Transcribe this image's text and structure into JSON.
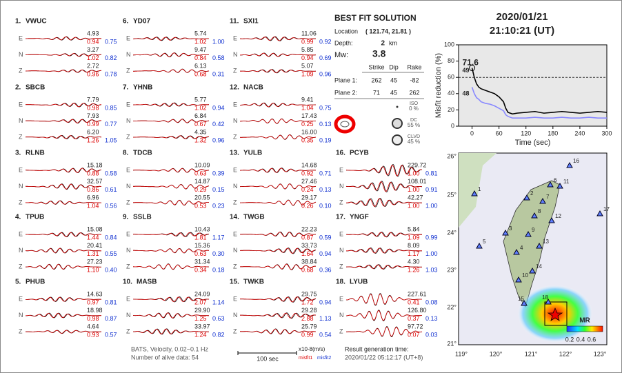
{
  "header": {
    "date": "2020/01/21",
    "time": "21:10:21  (UT)"
  },
  "stations": [
    {
      "id": "1.",
      "name": "VWUC",
      "components": [
        {
          "label": "E",
          "amplitude": "4.93",
          "misfit1": "0.94",
          "misfit2": "0.75"
        },
        {
          "label": "N",
          "amplitude": "3.27",
          "misfit1": "1.02",
          "misfit2": "0.82"
        },
        {
          "label": "Z",
          "amplitude": "2.72",
          "misfit1": "0.96",
          "misfit2": "0.78"
        }
      ]
    },
    {
      "id": "2.",
      "name": "SBCB",
      "components": [
        {
          "label": "E",
          "amplitude": "7.79",
          "misfit1": "0.98",
          "misfit2": "0.85"
        },
        {
          "label": "N",
          "amplitude": "7.93",
          "misfit1": "0.99",
          "misfit2": "0.77"
        },
        {
          "label": "Z",
          "amplitude": "6.20",
          "misfit1": "1.26",
          "misfit2": "1.05"
        }
      ]
    },
    {
      "id": "3.",
      "name": "RLNB",
      "components": [
        {
          "label": "E",
          "amplitude": "15.18",
          "misfit1": "0.88",
          "misfit2": "0.58"
        },
        {
          "label": "N",
          "amplitude": "32.57",
          "misfit1": "0.86",
          "misfit2": "0.61"
        },
        {
          "label": "Z",
          "amplitude": "6.96",
          "misfit1": "1.04",
          "misfit2": "0.56"
        }
      ]
    },
    {
      "id": "4.",
      "name": "TPUB",
      "components": [
        {
          "label": "E",
          "amplitude": "15.08",
          "misfit1": "1.44",
          "misfit2": "0.84"
        },
        {
          "label": "N",
          "amplitude": "20.41",
          "misfit1": "1.31",
          "misfit2": "0.55"
        },
        {
          "label": "Z",
          "amplitude": "27.23",
          "misfit1": "1.10",
          "misfit2": "0.40"
        }
      ]
    },
    {
      "id": "5.",
      "name": "PHUB",
      "components": [
        {
          "label": "E",
          "amplitude": "14.63",
          "misfit1": "0.97",
          "misfit2": "0.81"
        },
        {
          "label": "N",
          "amplitude": "18.98",
          "misfit1": "0.98",
          "misfit2": "0.87"
        },
        {
          "label": "Z",
          "amplitude": "4.64",
          "misfit1": "0.93",
          "misfit2": "0.57"
        }
      ]
    },
    {
      "id": "6.",
      "name": "YD07",
      "components": [
        {
          "label": "E",
          "amplitude": "5.74",
          "misfit1": "1.02",
          "misfit2": "1.00"
        },
        {
          "label": "N",
          "amplitude": "9.47",
          "misfit1": "0.84",
          "misfit2": "0.58"
        },
        {
          "label": "Z",
          "amplitude": "6.13",
          "misfit1": "0.68",
          "misfit2": "0.31"
        }
      ]
    },
    {
      "id": "7.",
      "name": "YHNB",
      "components": [
        {
          "label": "E",
          "amplitude": "5.77",
          "misfit1": "1.02",
          "misfit2": "0.94"
        },
        {
          "label": "N",
          "amplitude": "6.84",
          "misfit1": "0.67",
          "misfit2": "0.42"
        },
        {
          "label": "Z",
          "amplitude": "4.35",
          "misfit1": "1.32",
          "misfit2": "0.96"
        }
      ]
    },
    {
      "id": "8.",
      "name": "TDCB",
      "components": [
        {
          "label": "E",
          "amplitude": "10.09",
          "misfit1": "0.63",
          "misfit2": "0.39"
        },
        {
          "label": "N",
          "amplitude": "14.87",
          "misfit1": "0.29",
          "misfit2": "0.15"
        },
        {
          "label": "Z",
          "amplitude": "20.55",
          "misfit1": "0.53",
          "misfit2": "0.23"
        }
      ]
    },
    {
      "id": "9.",
      "name": "SSLB",
      "components": [
        {
          "label": "E",
          "amplitude": "10.43",
          "misfit1": "1.81",
          "misfit2": "1.17"
        },
        {
          "label": "N",
          "amplitude": "15.36",
          "misfit1": "0.63",
          "misfit2": "0.30"
        },
        {
          "label": "Z",
          "amplitude": "31.34",
          "misfit1": "0.34",
          "misfit2": "0.18"
        }
      ]
    },
    {
      "id": "10.",
      "name": "MASB",
      "components": [
        {
          "label": "E",
          "amplitude": "24.09",
          "misfit1": "2.07",
          "misfit2": "1.14"
        },
        {
          "label": "N",
          "amplitude": "29.90",
          "misfit1": "1.25",
          "misfit2": "0.63"
        },
        {
          "label": "Z",
          "amplitude": "33.97",
          "misfit1": "1.24",
          "misfit2": "0.82"
        }
      ]
    },
    {
      "id": "11.",
      "name": "SXI1",
      "components": [
        {
          "label": "E",
          "amplitude": "11.06",
          "misfit1": "0.99",
          "misfit2": "0.92"
        },
        {
          "label": "N",
          "amplitude": "5.85",
          "misfit1": "0.94",
          "misfit2": "0.69"
        },
        {
          "label": "Z",
          "amplitude": "5.07",
          "misfit1": "1.09",
          "misfit2": "0.96"
        }
      ]
    },
    {
      "id": "12.",
      "name": "NACB",
      "components": [
        {
          "label": "E",
          "amplitude": "9.41",
          "misfit1": "1.04",
          "misfit2": "0.75"
        },
        {
          "label": "N",
          "amplitude": "17.43",
          "misfit1": "0.25",
          "misfit2": "0.13"
        },
        {
          "label": "Z",
          "amplitude": "16.00",
          "misfit1": "0.35",
          "misfit2": "0.19"
        }
      ]
    },
    {
      "id": "13.",
      "name": "YULB",
      "components": [
        {
          "label": "E",
          "amplitude": "14.68",
          "misfit1": "0.92",
          "misfit2": "0.71"
        },
        {
          "label": "N",
          "amplitude": "27.46",
          "misfit1": "0.24",
          "misfit2": "0.13"
        },
        {
          "label": "Z",
          "amplitude": "29.17",
          "misfit1": "0.26",
          "misfit2": "0.10"
        }
      ]
    },
    {
      "id": "14.",
      "name": "TWGB",
      "components": [
        {
          "label": "E",
          "amplitude": "22.23",
          "misfit1": "0.87",
          "misfit2": "0.59"
        },
        {
          "label": "N",
          "amplitude": "33.73",
          "misfit1": "1.64",
          "misfit2": "0.94"
        },
        {
          "label": "Z",
          "amplitude": "38.84",
          "misfit1": "0.68",
          "misfit2": "0.36"
        }
      ]
    },
    {
      "id": "15.",
      "name": "TWKB",
      "components": [
        {
          "label": "E",
          "amplitude": "29.75",
          "misfit1": "1.72",
          "misfit2": "0.94"
        },
        {
          "label": "N",
          "amplitude": "29.28",
          "misfit1": "2.88",
          "misfit2": "1.13"
        },
        {
          "label": "Z",
          "amplitude": "25.79",
          "misfit1": "0.99",
          "misfit2": "0.54"
        }
      ]
    },
    {
      "id": "16.",
      "name": "PCYB",
      "components": [
        {
          "label": "E",
          "amplitude": "229.72",
          "misfit1": "1.00",
          "misfit2": "0.81"
        },
        {
          "label": "N",
          "amplitude": "108.01",
          "misfit1": "1.00",
          "misfit2": "0.91"
        },
        {
          "label": "Z",
          "amplitude": "42.27",
          "misfit1": "1.00",
          "misfit2": "1.00"
        }
      ]
    },
    {
      "id": "17.",
      "name": "YNGF",
      "components": [
        {
          "label": "E",
          "amplitude": "5.84",
          "misfit1": "1.09",
          "misfit2": "0.99"
        },
        {
          "label": "N",
          "amplitude": "8.09",
          "misfit1": "1.17",
          "misfit2": "1.00"
        },
        {
          "label": "Z",
          "amplitude": "4.30",
          "misfit1": "1.26",
          "misfit2": "1.03"
        }
      ]
    },
    {
      "id": "18.",
      "name": "LYUB",
      "components": [
        {
          "label": "E",
          "amplitude": "227.61",
          "misfit1": "0.41",
          "misfit2": "0.08"
        },
        {
          "label": "N",
          "amplitude": "126.80",
          "misfit1": "0.37",
          "misfit2": "0.13"
        },
        {
          "label": "Z",
          "amplitude": "97.72",
          "misfit1": "0.07",
          "misfit2": "0.03"
        }
      ]
    }
  ],
  "solution": {
    "title": "BEST FIT SOLUTION",
    "location_label": "Location",
    "location": "( 121.74, 21.81 )",
    "depth_label": "Depth:",
    "depth": "2",
    "depth_unit": "km",
    "mw_label": "Mw:",
    "mw": "3.8",
    "columns": [
      "Strike",
      "Dip",
      "Rake"
    ],
    "planes": [
      {
        "label": "Plane 1:",
        "values": [
          "262",
          "45",
          "-82"
        ]
      },
      {
        "label": "Plane 2:",
        "values": [
          "71",
          "45",
          "262"
        ]
      }
    ],
    "components": [
      {
        "label": "ISO",
        "value": "0 %"
      },
      {
        "label": "DC",
        "value": "55 %"
      },
      {
        "label": "CLVD",
        "value": "45 %"
      }
    ]
  },
  "footer": {
    "filter": "BATS, Velocity, 0.02~0.1 Hz",
    "alive": "Number of alive data: 54",
    "scale": "100 sec",
    "units": "x10-8(m/s)",
    "misfit1": "misfit1",
    "misfit2": "misfit2",
    "result_label": "Result generation time:",
    "result_time": "2020/01/22 05:12:17 (UT+8)"
  },
  "chart_data": {
    "type": "line",
    "y_label": "Misfit reduction (%)",
    "x_label": "Time (sec)",
    "x": [
      0,
      5,
      10,
      15,
      20,
      30,
      40,
      50,
      60,
      70,
      75,
      80,
      90,
      100,
      120,
      140,
      160,
      180,
      200,
      220,
      240,
      260,
      280,
      300
    ],
    "series": [
      {
        "name": "",
        "color": "#000000",
        "values": [
          71.6,
          60,
          52,
          48,
          46,
          44,
          42,
          40,
          36,
          30,
          22,
          17,
          15,
          16,
          17,
          18,
          16,
          17,
          18,
          17,
          16,
          17,
          18,
          17
        ]
      },
      {
        "color": "#8888ff",
        "values": [
          48,
          40,
          35,
          33,
          30,
          28,
          27,
          25,
          22,
          19,
          14,
          12,
          10,
          10,
          10,
          11,
          10,
          10,
          11,
          10,
          10,
          11,
          10,
          10
        ]
      }
    ],
    "annotations": [
      {
        "text": "71.6",
        "color": "#dd0000"
      },
      {
        "text": "49",
        "color": "#888888"
      },
      {
        "text": "48",
        "color": "#8888ff"
      }
    ],
    "reference_line": 60,
    "xlim": [
      -30,
      300
    ],
    "ylim": [
      0,
      100
    ],
    "xticks": [
      0,
      60,
      120,
      180,
      240,
      300
    ],
    "yticks": [
      0,
      20,
      40,
      60,
      80,
      100
    ]
  },
  "map": {
    "lon_ticks": [
      "119°",
      "120°",
      "121°",
      "122°",
      "123°"
    ],
    "lat_ticks": [
      "26°",
      "25°",
      "24°",
      "23°",
      "22°",
      "21°"
    ],
    "stations": [
      "1",
      "2",
      "3",
      "4",
      "5",
      "6",
      "7",
      "8",
      "9",
      "10",
      "11",
      "12",
      "13",
      "14",
      "15",
      "16",
      "17",
      "18"
    ],
    "colorbar_title": "MR",
    "colorbar_ticks": [
      "0.2",
      "0.4",
      "0.6"
    ]
  }
}
